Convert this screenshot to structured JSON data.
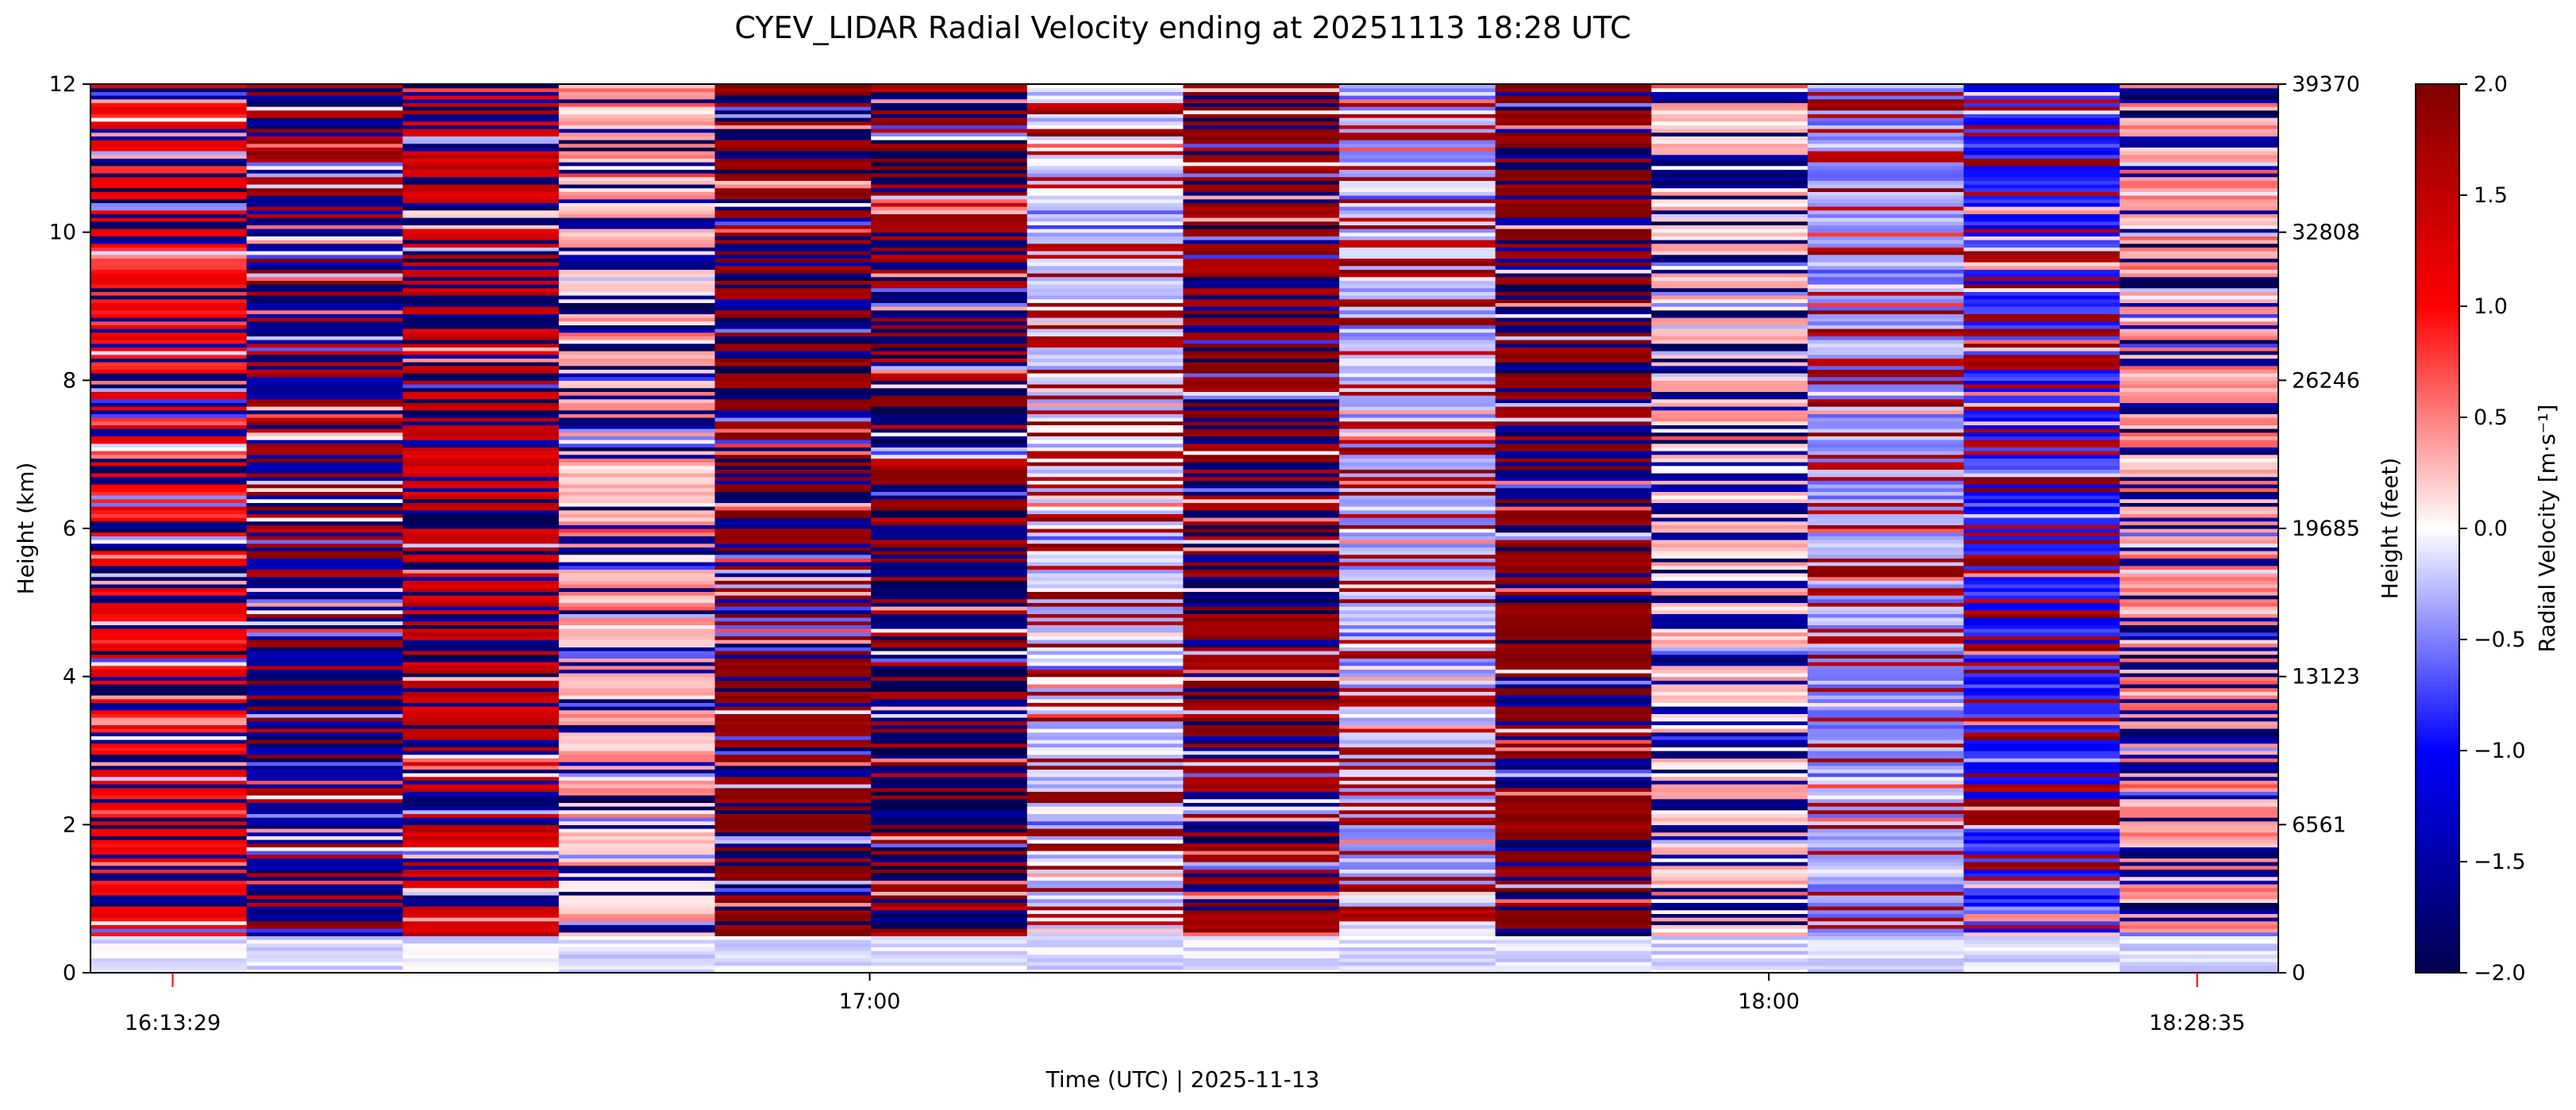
{
  "chart_data": {
    "type": "heatmap",
    "title": "CYEV_LIDAR Radial Velocity ending at 20251113 18:28 UTC",
    "xlabel": "Time (UTC)  |  2025-11-13",
    "ylabel": "Height (km)",
    "ylabel_right": "Height (feet)",
    "colorbar_label": "Radial Velocity [m·s⁻¹]",
    "colormap": "seismic",
    "vlim": [
      -2.0,
      2.0
    ],
    "ylim": [
      0,
      12
    ],
    "xlim": [
      "16:08:00",
      "18:34:00"
    ],
    "grid": false,
    "yticks_left": [
      "0",
      "2",
      "4",
      "6",
      "8",
      "10",
      "12"
    ],
    "yticks_right": [
      "0",
      "6561",
      "13123",
      "19685",
      "26246",
      "32808",
      "39370"
    ],
    "xticks": [
      {
        "time": "17:00",
        "label": "17:00"
      },
      {
        "time": "18:00",
        "label": "18:00"
      }
    ],
    "time_markers": [
      {
        "time": "16:13:29",
        "label": "16:13:29",
        "color": "#ff0000"
      },
      {
        "time": "18:28:35",
        "label": "18:28:35",
        "color": "#ff0000"
      }
    ],
    "colorbar_ticks": [
      "2.0",
      "1.5",
      "1.0",
      "0.5",
      "0.0",
      "−0.5",
      "−1.0",
      "−1.5",
      "−2.0"
    ],
    "scans": [
      {
        "start": "16:08:00",
        "end": "16:18:25",
        "mean_velocity": 1.0
      },
      {
        "start": "16:18:25",
        "end": "16:28:50",
        "mean_velocity": -1.6
      },
      {
        "start": "16:28:50",
        "end": "16:39:15",
        "mean_velocity": 1.4
      },
      {
        "start": "16:39:15",
        "end": "16:49:40",
        "mean_velocity": 0.3
      },
      {
        "start": "16:49:40",
        "end": "17:00:05",
        "mean_velocity": 1.9
      },
      {
        "start": "17:00:05",
        "end": "17:10:30",
        "mean_velocity": -1.8
      },
      {
        "start": "17:10:30",
        "end": "17:20:55",
        "mean_velocity": -0.2
      },
      {
        "start": "17:20:55",
        "end": "17:31:20",
        "mean_velocity": 1.8
      },
      {
        "start": "17:31:20",
        "end": "17:41:45",
        "mean_velocity": -0.3
      },
      {
        "start": "17:41:45",
        "end": "17:52:10",
        "mean_velocity": 1.9
      },
      {
        "start": "17:52:10",
        "end": "18:02:35",
        "mean_velocity": 0.2
      },
      {
        "start": "18:02:35",
        "end": "18:13:00",
        "mean_velocity": -0.4
      },
      {
        "start": "18:13:00",
        "end": "18:23:25",
        "mean_velocity": -0.9
      },
      {
        "start": "18:23:25",
        "end": "18:34:00",
        "mean_velocity": 0.4
      }
    ]
  }
}
